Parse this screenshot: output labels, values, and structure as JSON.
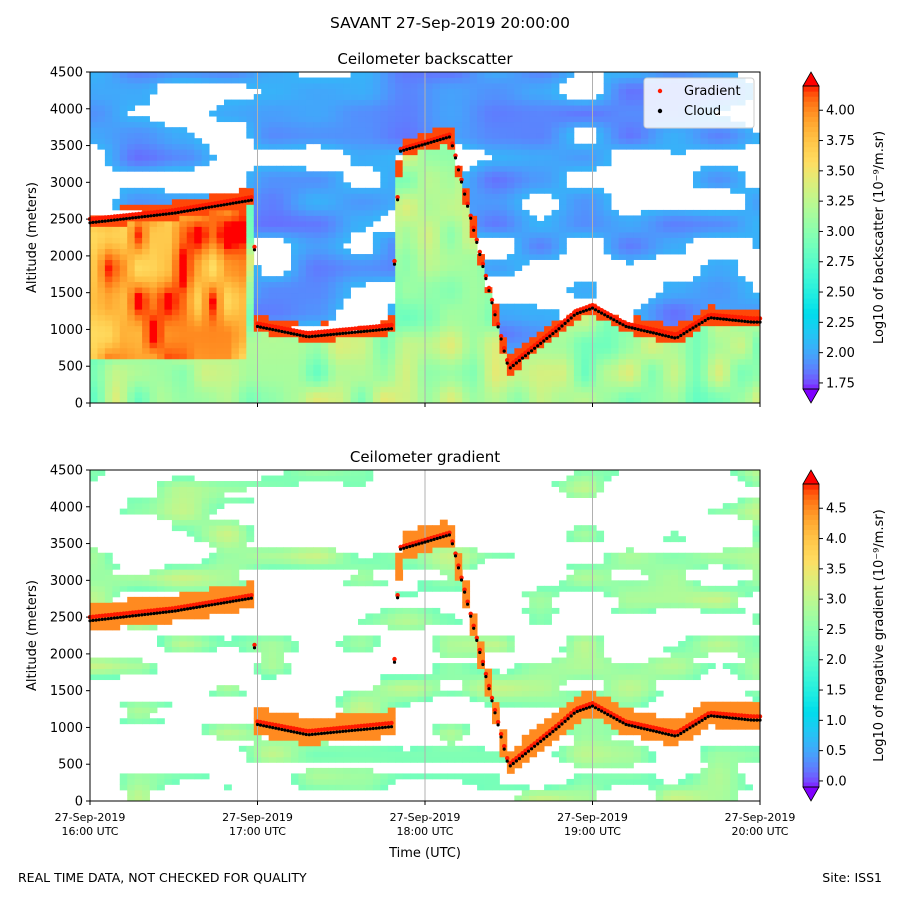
{
  "suptitle": "SAVANT 27-Sep-2019 20:00:00",
  "footer": {
    "left": "REAL TIME DATA, NOT CHECKED FOR QUALITY",
    "right": "Site: ISS1"
  },
  "colors": {
    "gradient_marker": "#ff1a00",
    "cloud_marker": "#000000",
    "grid": "#b0b0b0",
    "colormap": "rainbow"
  },
  "chart_data": [
    {
      "type": "heatmap",
      "title": "Ceilometer backscatter",
      "ylabel": "Altitude (meters)",
      "xlabel": "",
      "ylim": [
        0,
        4500
      ],
      "yticks": [
        0,
        500,
        1000,
        1500,
        2000,
        2500,
        3000,
        3500,
        4000,
        4500
      ],
      "xlim_hours": [
        16,
        20
      ],
      "xgrid_hours": [
        17,
        18,
        19
      ],
      "colorbar": {
        "label": "Log10 of backscatter (10⁻⁹/m.sr)",
        "min": 1.7,
        "max": 4.2,
        "ticks": [
          "1.75",
          "2.00",
          "2.25",
          "2.50",
          "2.75",
          "3.00",
          "3.25",
          "3.50",
          "3.75",
          "4.00"
        ],
        "extend": "both"
      },
      "legend": {
        "position": "top-right",
        "entries": [
          "Gradient",
          "Cloud"
        ]
      },
      "series": [
        {
          "name": "Gradient",
          "x_hours": [
            16.0,
            16.5,
            16.97,
            17.0,
            17.3,
            17.8,
            17.85,
            18.15,
            18.5,
            18.8,
            18.9,
            19.0,
            19.2,
            19.5,
            19.7,
            19.95
          ],
          "altitude": [
            2500,
            2620,
            2800,
            1080,
            950,
            1060,
            3450,
            3650,
            500,
            1050,
            1250,
            1330,
            1080,
            930,
            1200,
            1150
          ]
        },
        {
          "name": "Cloud",
          "x_hours": [
            16.0,
            16.5,
            16.97,
            17.0,
            17.3,
            17.8,
            17.85,
            18.15,
            18.5,
            18.8,
            18.9,
            19.0,
            19.2,
            19.5,
            19.7,
            19.95
          ],
          "altitude": [
            2450,
            2580,
            2760,
            1040,
            900,
            1010,
            3420,
            3620,
            460,
            1010,
            1210,
            1290,
            1040,
            880,
            1160,
            1100
          ]
        }
      ]
    },
    {
      "type": "heatmap",
      "title": "Ceilometer gradient",
      "ylabel": "Altitude (meters)",
      "xlabel": "Time (UTC)",
      "ylim": [
        0,
        4500
      ],
      "yticks": [
        0,
        500,
        1000,
        1500,
        2000,
        2500,
        3000,
        3500,
        4000,
        4500
      ],
      "xlim_hours": [
        16,
        20
      ],
      "xticks": [
        {
          "hour": 16,
          "date": "27-Sep-2019",
          "time": "16:00 UTC"
        },
        {
          "hour": 17,
          "date": "27-Sep-2019",
          "time": "17:00 UTC"
        },
        {
          "hour": 18,
          "date": "27-Sep-2019",
          "time": "18:00 UTC"
        },
        {
          "hour": 19,
          "date": "27-Sep-2019",
          "time": "19:00 UTC"
        },
        {
          "hour": 20,
          "date": "27-Sep-2019",
          "time": "20:00 UTC"
        }
      ],
      "colorbar": {
        "label": "Log10 of negative gradient (10⁻⁹/m.sr)",
        "min": -0.1,
        "max": 4.9,
        "ticks": [
          "0.0",
          "0.5",
          "1.0",
          "1.5",
          "2.0",
          "2.5",
          "3.0",
          "3.5",
          "4.0",
          "4.5"
        ],
        "extend": "both"
      }
    }
  ]
}
